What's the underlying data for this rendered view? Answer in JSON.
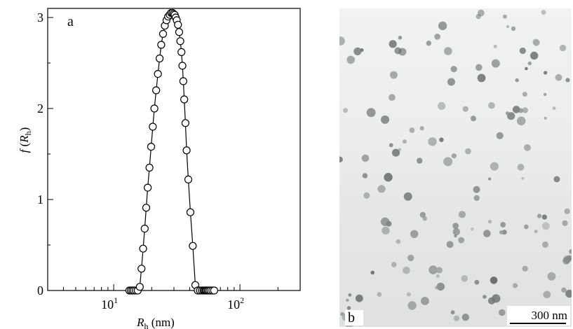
{
  "chart_data": {
    "type": "scatter",
    "panel_label": "a",
    "xscale": "log",
    "xlim": [
      3,
      300
    ],
    "ylim": [
      0,
      3.1
    ],
    "xticks": [
      10,
      100
    ],
    "yticks": [
      0,
      1,
      2,
      3
    ],
    "xtick_labels": [
      {
        "base": "10",
        "exp": "1"
      },
      {
        "base": "10",
        "exp": "2"
      }
    ],
    "ytick_labels": [
      "0",
      "1",
      "2",
      "3"
    ],
    "xlabel": {
      "symbol": "R",
      "subscript": "h",
      "unit": " (nm)"
    },
    "ylabel": {
      "func": "f",
      "open": " (",
      "symbol": "R",
      "subscript": "h",
      "close": ")"
    },
    "marker": "open-circle",
    "connected": true,
    "x": [
      13.3,
      13.7,
      14.1,
      14.5,
      15.0,
      15.5,
      16.1,
      16.6,
      17.1,
      17.6,
      18.1,
      18.6,
      19.2,
      19.8,
      20.4,
      21.0,
      21.7,
      22.4,
      23.1,
      23.8,
      24.6,
      25.4,
      26.2,
      27.0,
      27.8,
      28.5,
      29.2,
      29.8,
      30.4,
      31.0,
      31.6,
      32.3,
      33.0,
      33.7,
      34.4,
      35.0,
      35.6,
      36.2,
      37.0,
      37.8,
      39.0,
      40.5,
      42.3,
      44.3,
      46.3,
      48.2,
      50.0,
      51.5,
      52.5,
      53.5,
      54.5,
      55.7,
      57.0,
      58.5,
      60.5,
      62.5
    ],
    "y": [
      0.0,
      0.0,
      0.0,
      0.0,
      0.0,
      0.0,
      0.04,
      0.24,
      0.46,
      0.68,
      0.91,
      1.13,
      1.35,
      1.58,
      1.8,
      2.0,
      2.2,
      2.38,
      2.55,
      2.7,
      2.82,
      2.91,
      2.97,
      3.01,
      3.03,
      3.05,
      3.05,
      3.04,
      3.03,
      3.0,
      2.97,
      2.92,
      2.84,
      2.74,
      2.62,
      2.47,
      2.3,
      2.1,
      1.84,
      1.54,
      1.22,
      0.86,
      0.49,
      0.06,
      0.0,
      0.0,
      0.0,
      0.0,
      0.0,
      0.0,
      0.0,
      0.0,
      0.0,
      0.0,
      0.0,
      0.0
    ]
  },
  "micrograph": {
    "panel_label": "b",
    "scale_bar_label": "300 nm"
  }
}
